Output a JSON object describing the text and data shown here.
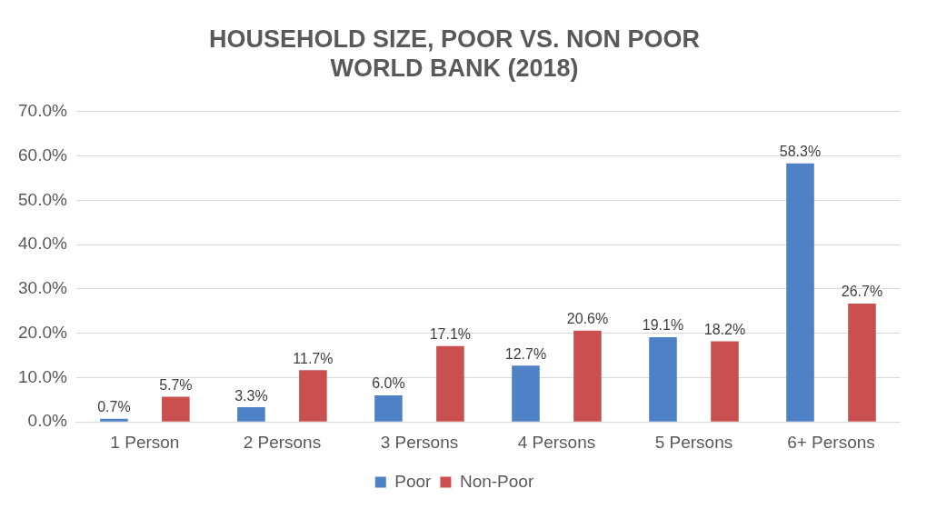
{
  "chart_data": {
    "type": "bar",
    "title": "HOUSEHOLD SIZE, POOR VS. NON POOR\nWORLD BANK (2018)",
    "categories": [
      "1 Person",
      "2 Persons",
      "3 Persons",
      "4 Persons",
      "5 Persons",
      "6+ Persons"
    ],
    "series": [
      {
        "name": "Poor",
        "color": "#4f81c7",
        "values": [
          0.7,
          3.3,
          6.0,
          12.7,
          19.1,
          58.3
        ],
        "value_labels": [
          "0.7%",
          "3.3%",
          "6.0%",
          "12.7%",
          "19.1%",
          "58.3%"
        ]
      },
      {
        "name": "Non-Poor",
        "color": "#c9504f",
        "values": [
          5.7,
          11.7,
          17.1,
          20.6,
          18.2,
          26.7
        ],
        "value_labels": [
          "5.7%",
          "11.7%",
          "17.1%",
          "20.6%",
          "18.2%",
          "26.7%"
        ]
      }
    ],
    "ylim": [
      0,
      70
    ],
    "yticks": [
      {
        "value": 0,
        "label": "0.0%"
      },
      {
        "value": 10,
        "label": "10.0%"
      },
      {
        "value": 20,
        "label": "20.0%"
      },
      {
        "value": 30,
        "label": "30.0%"
      },
      {
        "value": 40,
        "label": "40.0%"
      },
      {
        "value": 50,
        "label": "50.0%"
      },
      {
        "value": 60,
        "label": "60.0%"
      },
      {
        "value": 70,
        "label": "70.0%"
      }
    ],
    "grid": "y",
    "legend": "bottom"
  }
}
